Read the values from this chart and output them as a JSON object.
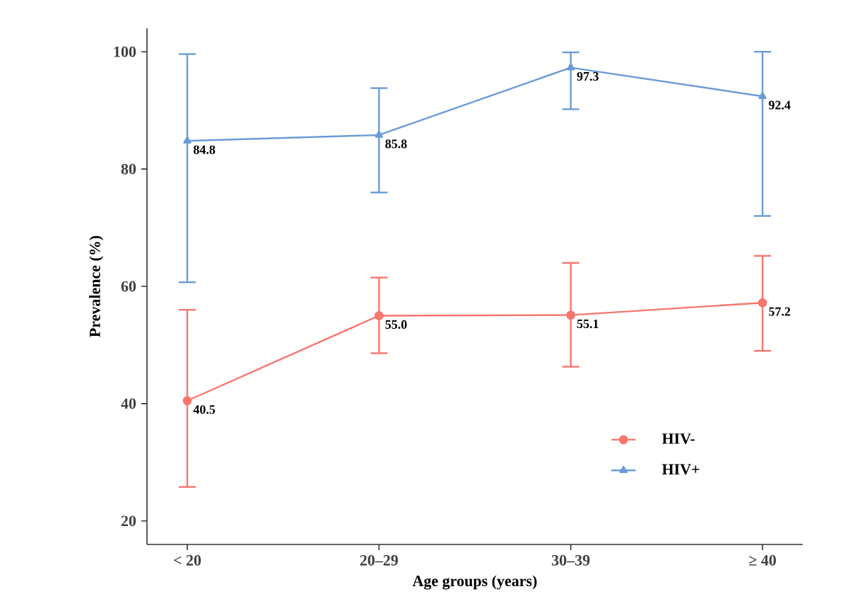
{
  "chart_data": {
    "type": "line",
    "xlabel": "Age groups (years)",
    "ylabel": "Prevalence (%)",
    "categories": [
      "< 20",
      "20–29",
      "30–39",
      "≥ 40"
    ],
    "series": [
      {
        "name": "HIV-",
        "color": "#f8766d",
        "marker": "circle",
        "values": [
          40.5,
          55.0,
          55.1,
          57.2
        ],
        "errors": [
          [
            25.8,
            56.0
          ],
          [
            48.6,
            61.5
          ],
          [
            46.3,
            64.0
          ],
          [
            49.0,
            65.2
          ]
        ],
        "value_labels": [
          "40.5",
          "55.0",
          "55.1",
          "57.2"
        ]
      },
      {
        "name": "HIV+",
        "color": "#6a9bd8",
        "marker": "triangle",
        "values": [
          84.8,
          85.8,
          97.3,
          92.4
        ],
        "errors": [
          [
            60.7,
            99.6
          ],
          [
            76.0,
            93.8
          ],
          [
            90.2,
            99.9
          ],
          [
            72.0,
            100.0
          ]
        ],
        "value_labels": [
          "84.8",
          "85.8",
          "97.3",
          "92.4"
        ]
      }
    ],
    "ylim": [
      16,
      104
    ],
    "yticks": [
      20,
      40,
      60,
      80,
      100
    ],
    "line_style": "solid",
    "legend": "bottom right"
  }
}
